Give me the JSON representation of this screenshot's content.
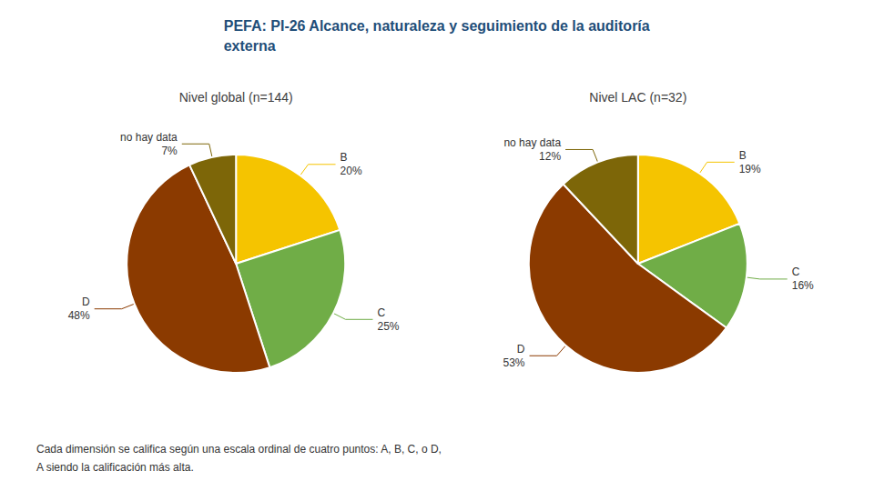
{
  "title": "PEFA: PI-26 Alcance, naturaleza y seguimiento de la auditoría\nexterna",
  "annotations": [
    "Cada dimensión se califica según una escala ordinal de cuatro puntos: A, B, C, o D,",
    "A siendo la calificación más alta."
  ],
  "chart_data": [
    {
      "type": "pie",
      "title": "Nivel global (n=144)",
      "categories": [
        "B",
        "C",
        "D",
        "no hay data"
      ],
      "values": [
        20,
        25,
        48,
        7
      ],
      "value_labels": [
        "20%",
        "25%",
        "48%",
        "7%"
      ],
      "colors": [
        "#F5C400",
        "#70AD47",
        "#8B3A00",
        "#7D6608"
      ],
      "data_labels": true,
      "legend": false
    },
    {
      "type": "pie",
      "title": "Nivel LAC (n=32)",
      "categories": [
        "B",
        "C",
        "D",
        "no hay data"
      ],
      "values": [
        19,
        16,
        53,
        12
      ],
      "value_labels": [
        "19%",
        "16%",
        "53%",
        "12%"
      ],
      "colors": [
        "#F5C400",
        "#70AD47",
        "#8B3A00",
        "#7D6608"
      ],
      "data_labels": true,
      "legend": false
    }
  ]
}
